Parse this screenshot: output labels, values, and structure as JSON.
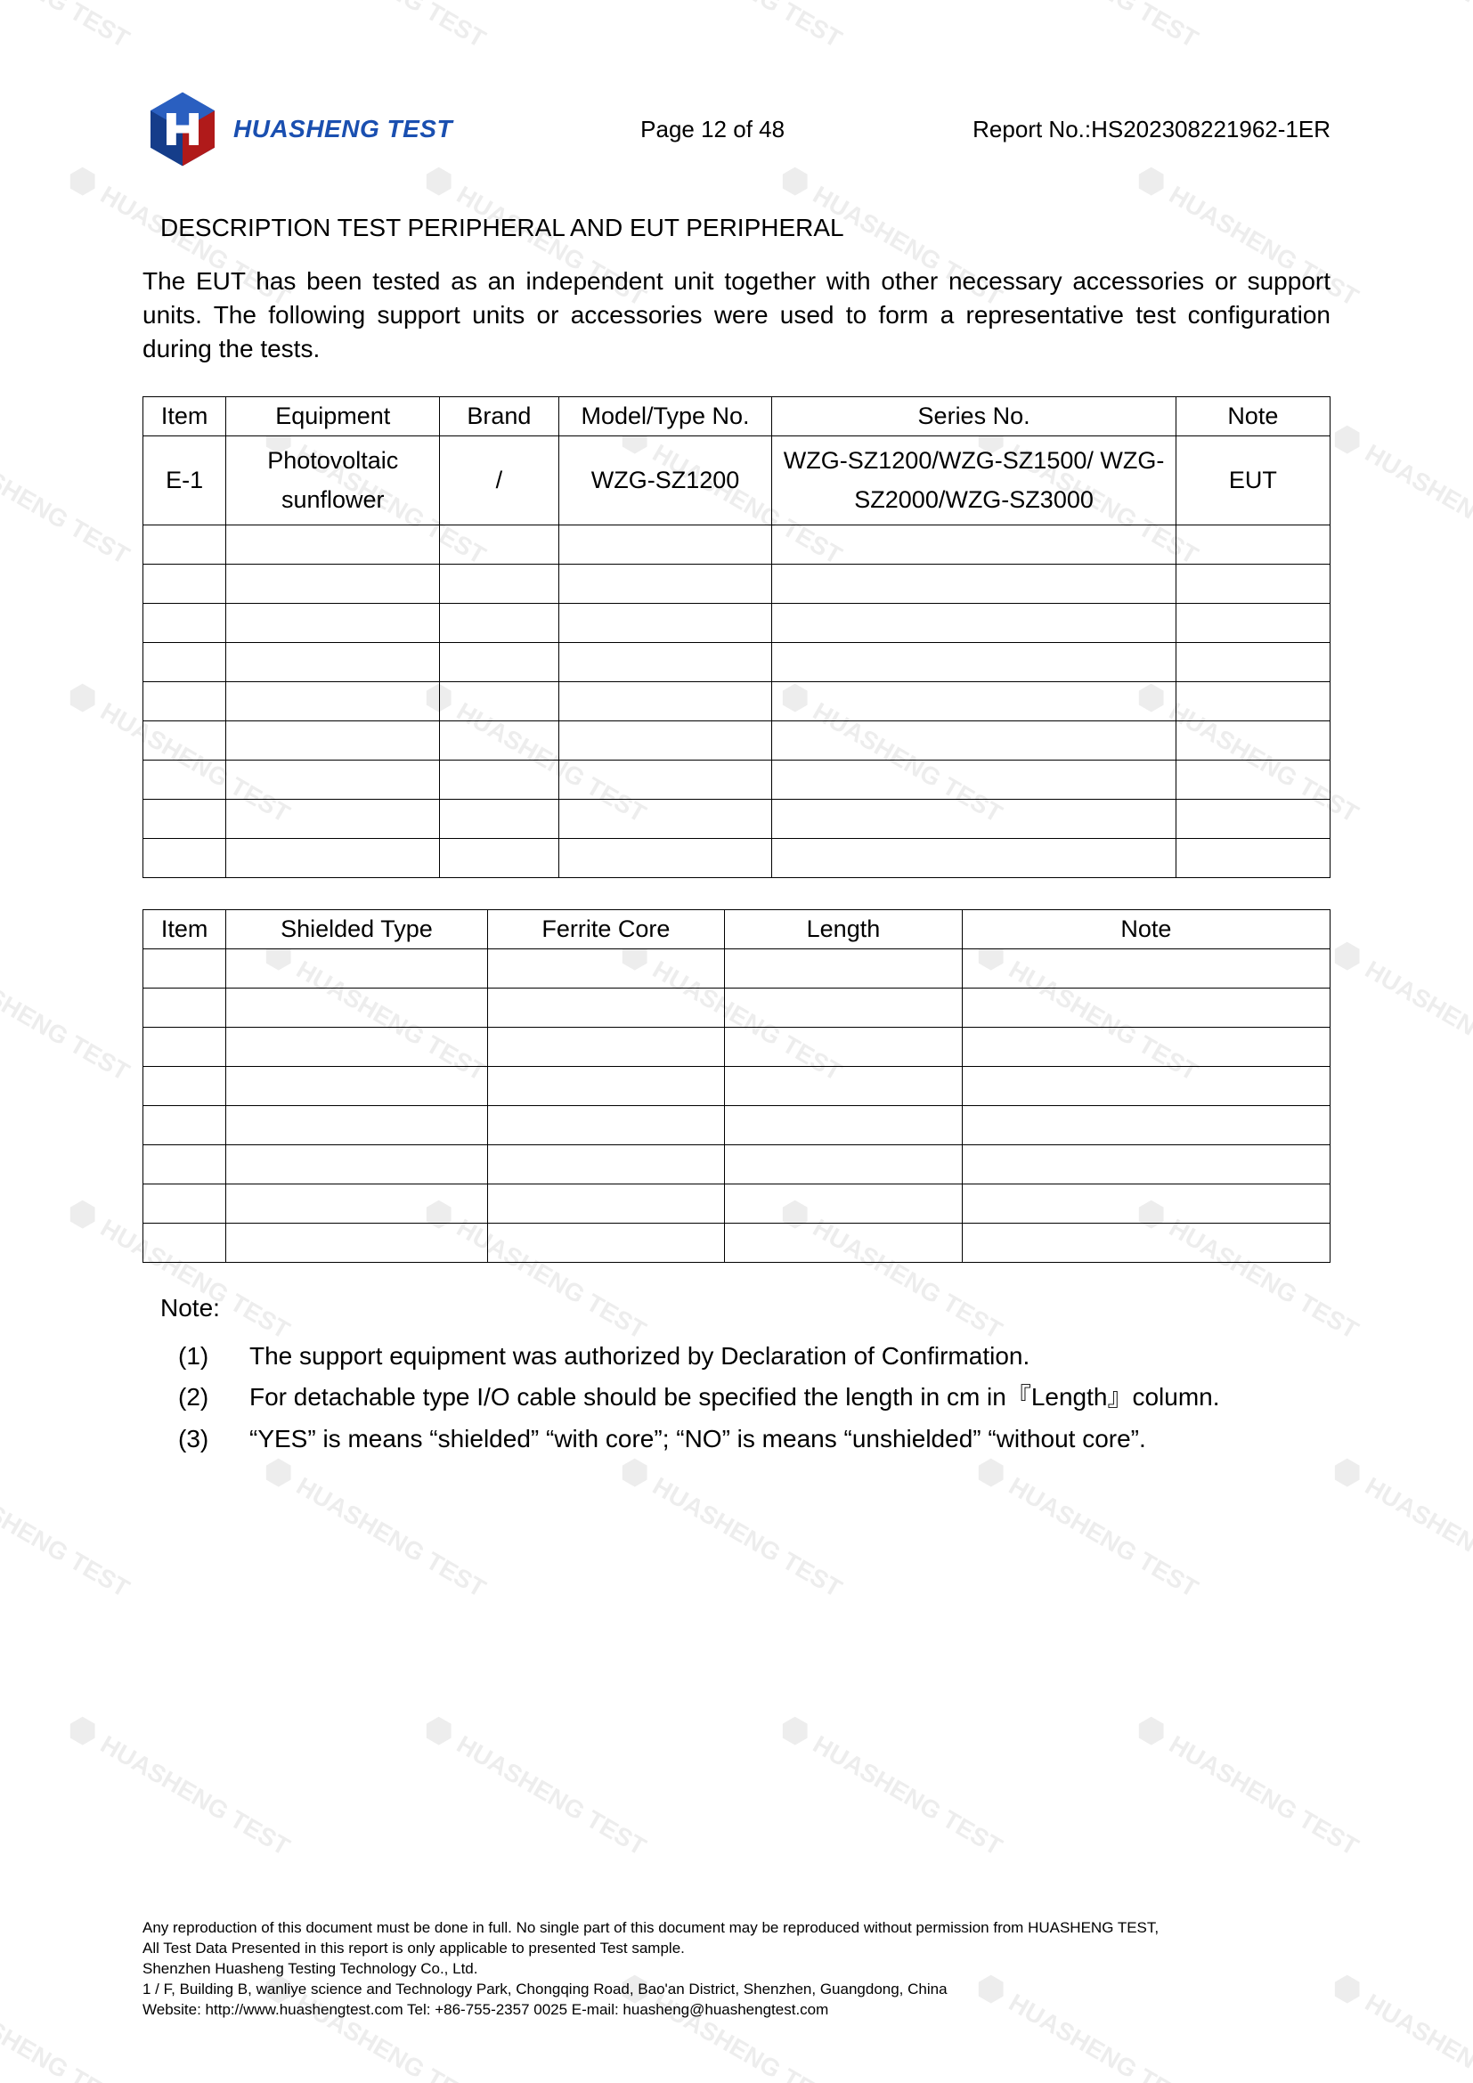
{
  "header": {
    "company_name": "HUASHENG TEST",
    "page_label": "Page 12 of 48",
    "report_label": "Report No.:HS202308221962-1ER",
    "logo_colors": {
      "blue": "#1a4fb0",
      "red": "#b01a1a",
      "dark": "#2a2a2a"
    }
  },
  "section": {
    "title": "DESCRIPTION TEST PERIPHERAL AND EUT PERIPHERAL",
    "intro": "The EUT has been tested as an independent unit together with other necessary accessories or support units. The following support units or accessories were used to form a representative test configuration during the tests."
  },
  "table1": {
    "headers": [
      "Item",
      "Equipment",
      "Brand",
      "Model/Type No.",
      "Series No.",
      "Note"
    ],
    "col_widths_pct": [
      7,
      18,
      10,
      18,
      34,
      13
    ],
    "rows": [
      {
        "item": "E-1",
        "equipment": "Photovoltaic sunflower",
        "brand": "/",
        "model": "WZG-SZ1200",
        "series": "WZG-SZ1200/WZG-SZ1500/ WZG-SZ2000/WZG-SZ3000",
        "note": "EUT"
      }
    ],
    "empty_rows": 9
  },
  "table2": {
    "headers": [
      "Item",
      "Shielded Type",
      "Ferrite Core",
      "Length",
      "Note"
    ],
    "col_widths_pct": [
      7,
      22,
      20,
      20,
      31
    ],
    "empty_rows": 8
  },
  "notes": {
    "title": "Note:",
    "items": [
      {
        "num": "(1)",
        "text": "The support equipment was authorized by Declaration of Confirmation."
      },
      {
        "num": "(2)",
        "text": "For detachable type I/O cable should be specified the length in cm in『Length』column."
      },
      {
        "num": "(3)",
        "text": "“YES” is means “shielded” “with core”; “NO” is means “unshielded” “without core”."
      }
    ]
  },
  "footer": {
    "line1": "Any reproduction of this document must be done in full. No single part of this document may be reproduced without permission from HUASHENG TEST,",
    "line2": "All Test Data Presented in this report is only applicable to presented Test sample.",
    "line3": "Shenzhen Huasheng Testing Technology Co., Ltd.",
    "line4": "1 / F, Building B, wanliye science and Technology Park, Chongqing Road, Bao'an District, Shenzhen, Guangdong, China",
    "line5": "Website: http://www.huashengtest.com      Tel: +86-755-2357 0025        E-mail: huasheng@huashengtest.com"
  },
  "watermark": {
    "text": "HUASHENG TEST"
  }
}
